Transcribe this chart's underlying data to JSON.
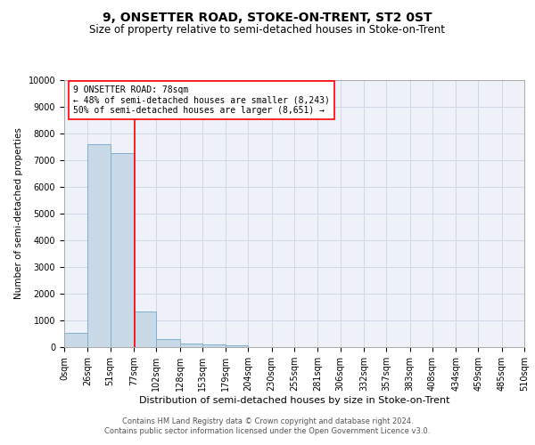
{
  "title": "9, ONSETTER ROAD, STOKE-ON-TRENT, ST2 0ST",
  "subtitle": "Size of property relative to semi-detached houses in Stoke-on-Trent",
  "xlabel": "Distribution of semi-detached houses by size in Stoke-on-Trent",
  "ylabel": "Number of semi-detached properties",
  "footnote1": "Contains HM Land Registry data © Crown copyright and database right 2024.",
  "footnote2": "Contains public sector information licensed under the Open Government Licence v3.0.",
  "bar_edges": [
    0,
    26,
    51,
    77,
    102,
    128,
    153,
    179,
    204,
    230,
    255,
    281,
    306,
    332,
    357,
    383,
    408,
    434,
    459,
    485,
    510
  ],
  "bar_heights": [
    550,
    7600,
    7250,
    1350,
    290,
    150,
    100,
    75,
    0,
    0,
    0,
    0,
    0,
    0,
    0,
    0,
    0,
    0,
    0,
    0
  ],
  "bar_color": "#c9d9e8",
  "bar_edge_color": "#7fafd0",
  "vline_x": 78,
  "vline_color": "red",
  "annotation_line1": "9 ONSETTER ROAD: 78sqm",
  "annotation_line2": "← 48% of semi-detached houses are smaller (8,243)",
  "annotation_line3": "50% of semi-detached houses are larger (8,651) →",
  "annotation_box_color": "white",
  "annotation_box_edge_color": "red",
  "ylim": [
    0,
    10000
  ],
  "yticks": [
    0,
    1000,
    2000,
    3000,
    4000,
    5000,
    6000,
    7000,
    8000,
    9000,
    10000
  ],
  "grid_color": "#d0d8e8",
  "bg_color": "#eef2f8",
  "title_fontsize": 10,
  "subtitle_fontsize": 8.5,
  "tick_label_size": 7,
  "ylabel_fontsize": 7.5,
  "xlabel_fontsize": 8,
  "annotation_fontsize": 7,
  "footnote_fontsize": 6
}
